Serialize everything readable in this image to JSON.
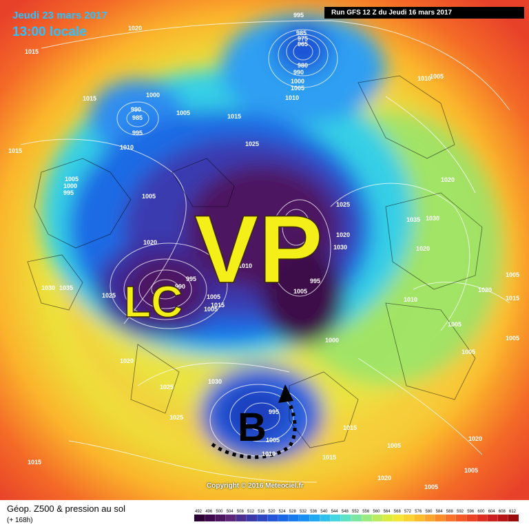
{
  "header": {
    "date": "Jeudi 23 mars 2017",
    "time": "13:00 locale",
    "run": "Run GFS 12 Z du Jeudi 16 mars 2017"
  },
  "annotations": {
    "vp": "VP",
    "lc": "LC",
    "b": "B"
  },
  "isobar_labels": [
    "1020",
    "1015",
    "995",
    "985",
    "975",
    "965",
    "980",
    "990",
    "1000",
    "1005",
    "1010",
    "1015",
    "1000",
    "990",
    "985",
    "995",
    "1005",
    "1015",
    "1025",
    "1005",
    "1000",
    "995",
    "1010",
    "1005",
    "1015",
    "1035",
    "1030",
    "1020",
    "1025",
    "1020",
    "1010",
    "995",
    "1005",
    "1000",
    "1020",
    "1010",
    "1005",
    "1030",
    "1020",
    "1010",
    "1005",
    "1005",
    "1005",
    "1030",
    "1035",
    "1020",
    "1025",
    "990",
    "995",
    "1005",
    "1015",
    "1005",
    "1020",
    "1025",
    "1025",
    "1030",
    "995",
    "1005",
    "1010",
    "1015",
    "1015",
    "1015",
    "1005",
    "1020",
    "1005",
    "1015",
    "1005",
    "1005",
    "1020"
  ],
  "copyright": "Copyright © 2016 Meteociel.fr",
  "footer": {
    "title": "Géop. Z500 & pression au sol",
    "subtitle": "(+ 168h)"
  },
  "legend": {
    "ticks": [
      "492",
      "496",
      "500",
      "504",
      "508",
      "512",
      "516",
      "520",
      "524",
      "528",
      "532",
      "536",
      "540",
      "544",
      "548",
      "552",
      "556",
      "560",
      "564",
      "568",
      "572",
      "576",
      "580",
      "584",
      "588",
      "592",
      "596",
      "600",
      "604",
      "608",
      "612"
    ],
    "colors": [
      "#2a0033",
      "#3c0a4a",
      "#4e1660",
      "#5c2777",
      "#4a2f8f",
      "#3b3aa8",
      "#2e46c0",
      "#2355d6",
      "#1b67e6",
      "#1a7bf0",
      "#1990f5",
      "#20a8f4",
      "#2fc1ec",
      "#45d6df",
      "#5fe1c4",
      "#7be6a3",
      "#9aea82",
      "#bcec5e",
      "#dceb3f",
      "#f3e636",
      "#fad431",
      "#fbbd2e",
      "#fca52c",
      "#fb8c2a",
      "#f87328",
      "#f25a26",
      "#ea4324",
      "#de3022",
      "#cc2020",
      "#b81616",
      "#9a0c0c"
    ]
  }
}
